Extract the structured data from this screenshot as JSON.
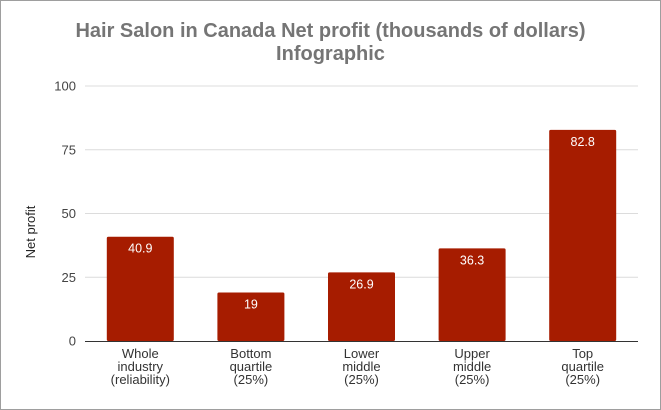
{
  "chart_data": {
    "type": "bar",
    "title": "Hair Salon in Canada Net profit (thousands of dollars)",
    "subtitle": "Infographic",
    "xlabel": "",
    "ylabel": "Net profit",
    "ylim": [
      0,
      100
    ],
    "yticks": [
      0,
      25,
      50,
      75,
      100
    ],
    "grid": true,
    "categories": [
      [
        "Whole",
        "industry",
        "(reliability)"
      ],
      [
        "Bottom",
        "quartile",
        "(25%)"
      ],
      [
        "Lower",
        "middle",
        "(25%)"
      ],
      [
        "Upper",
        "middle",
        "(25%)"
      ],
      [
        "Top",
        "quartile",
        "(25%)"
      ]
    ],
    "values": [
      40.9,
      19,
      26.9,
      36.3,
      82.8
    ],
    "data_labels": [
      "40.9",
      "19",
      "26.9",
      "36.3",
      "82.8"
    ],
    "bar_color": "#a61c00",
    "legend": "none"
  }
}
